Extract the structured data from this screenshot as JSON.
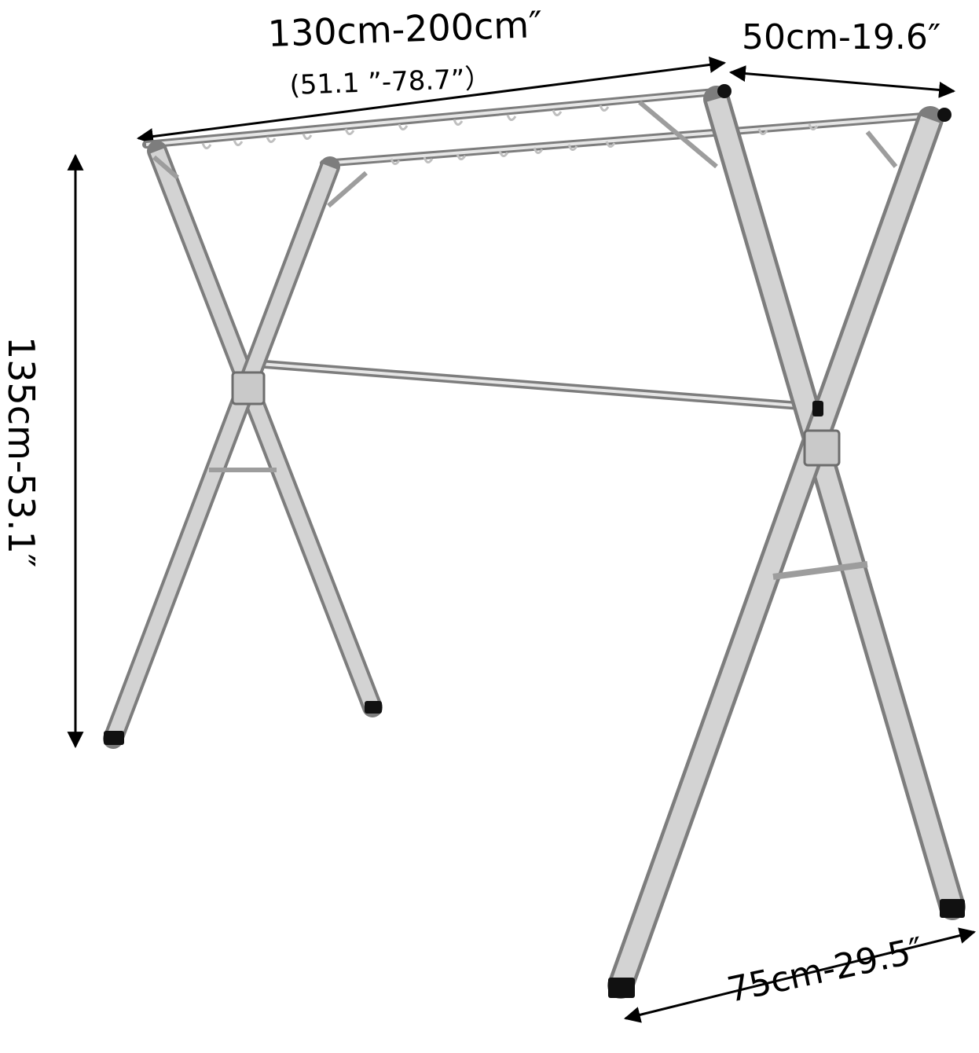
{
  "dimensions": {
    "width_range": "130cm-200cm″",
    "width_range_inches": "(51.1 ”-78.7”）",
    "depth": "50cm-19.6″",
    "height": "135cm-53.1″",
    "base_width": "75cm-29.5″"
  },
  "colors": {
    "frame": "#d3d3d3",
    "frame_edge": "#7d7d7d",
    "rail": "#bdbdbd",
    "feet": "#111111",
    "arrows": "#000000",
    "background": "#ffffff"
  }
}
